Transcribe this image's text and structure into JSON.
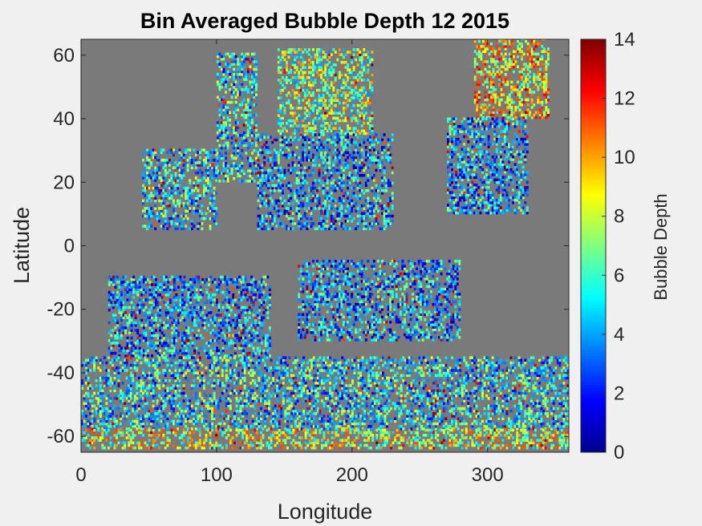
{
  "chart_data": {
    "type": "heatmap",
    "title": "Bin Averaged Bubble Depth 12 2015",
    "xlabel": "Longitude",
    "ylabel": "Latitude",
    "xlim": [
      0,
      360
    ],
    "ylim": [
      -65,
      65
    ],
    "x_ticks": [
      0,
      100,
      200,
      300
    ],
    "y_ticks": [
      60,
      40,
      20,
      0,
      -20,
      -40,
      -60
    ],
    "colorbar": {
      "label": "Bubble Depth",
      "colormap": "jet",
      "range": [
        0,
        14
      ],
      "ticks": [
        14,
        12,
        10,
        8,
        6,
        4,
        2,
        0
      ]
    },
    "background_color": "#7a7a7a",
    "grid": false,
    "regions": [
      {
        "lon": [
          100,
          130
        ],
        "lat": [
          20,
          60
        ],
        "typical_depth": 5
      },
      {
        "lon": [
          145,
          215
        ],
        "lat": [
          35,
          62
        ],
        "typical_depth": 7
      },
      {
        "lon": [
          130,
          230
        ],
        "lat": [
          5,
          35
        ],
        "typical_depth": 4
      },
      {
        "lon": [
          290,
          345
        ],
        "lat": [
          40,
          65
        ],
        "typical_depth": 9
      },
      {
        "lon": [
          270,
          330
        ],
        "lat": [
          10,
          40
        ],
        "typical_depth": 4
      },
      {
        "lon": [
          45,
          100
        ],
        "lat": [
          5,
          30
        ],
        "typical_depth": 5
      },
      {
        "lon": [
          160,
          280
        ],
        "lat": [
          -30,
          -5
        ],
        "typical_depth": 4
      },
      {
        "lon": [
          20,
          140
        ],
        "lat": [
          -35,
          -10
        ],
        "typical_depth": 4
      },
      {
        "lon": [
          0,
          360
        ],
        "lat": [
          -58,
          -35
        ],
        "typical_depth": 5
      },
      {
        "lon": [
          0,
          360
        ],
        "lat": [
          -64,
          -58
        ],
        "typical_depth": 8
      }
    ]
  }
}
